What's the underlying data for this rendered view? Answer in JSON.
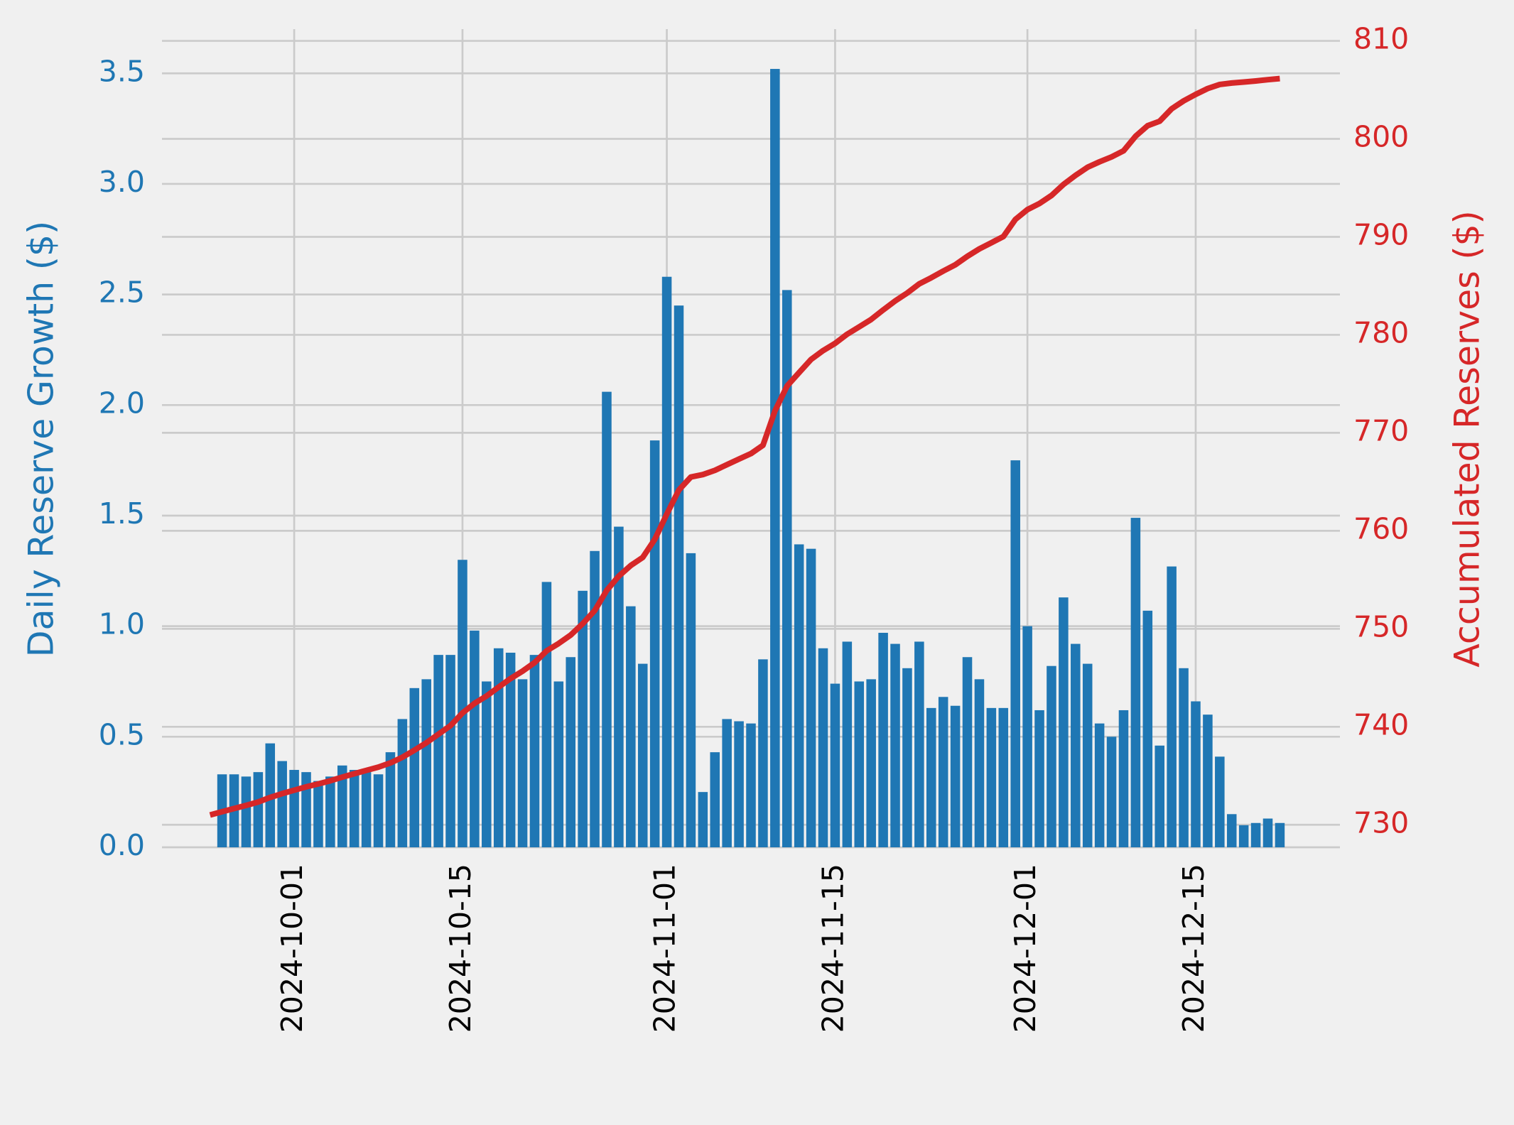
{
  "chart_data": {
    "type": "bar",
    "ylabel": "Daily Reserve Growth ($)",
    "y2label": "Accumulated Reserves ($)",
    "x": [
      "2024-09-24",
      "2024-09-25",
      "2024-09-26",
      "2024-09-27",
      "2024-09-28",
      "2024-09-29",
      "2024-09-30",
      "2024-10-01",
      "2024-10-02",
      "2024-10-03",
      "2024-10-04",
      "2024-10-05",
      "2024-10-06",
      "2024-10-07",
      "2024-10-08",
      "2024-10-09",
      "2024-10-10",
      "2024-10-11",
      "2024-10-12",
      "2024-10-13",
      "2024-10-14",
      "2024-10-15",
      "2024-10-16",
      "2024-10-17",
      "2024-10-18",
      "2024-10-19",
      "2024-10-20",
      "2024-10-21",
      "2024-10-22",
      "2024-10-23",
      "2024-10-24",
      "2024-10-25",
      "2024-10-26",
      "2024-10-27",
      "2024-10-28",
      "2024-10-29",
      "2024-10-30",
      "2024-10-31",
      "2024-11-01",
      "2024-11-02",
      "2024-11-03",
      "2024-11-04",
      "2024-11-05",
      "2024-11-06",
      "2024-11-07",
      "2024-11-08",
      "2024-11-09",
      "2024-11-10",
      "2024-11-11",
      "2024-11-12",
      "2024-11-13",
      "2024-11-14",
      "2024-11-15",
      "2024-11-16",
      "2024-11-17",
      "2024-11-18",
      "2024-11-19",
      "2024-11-20",
      "2024-11-21",
      "2024-11-22",
      "2024-11-23",
      "2024-11-24",
      "2024-11-25",
      "2024-11-26",
      "2024-11-27",
      "2024-11-28",
      "2024-11-29",
      "2024-11-30",
      "2024-12-01",
      "2024-12-02",
      "2024-12-03",
      "2024-12-04",
      "2024-12-05",
      "2024-12-06",
      "2024-12-07",
      "2024-12-08",
      "2024-12-09",
      "2024-12-10",
      "2024-12-11",
      "2024-12-12",
      "2024-12-13",
      "2024-12-14",
      "2024-12-15",
      "2024-12-16",
      "2024-12-17",
      "2024-12-18",
      "2024-12-19",
      "2024-12-20",
      "2024-12-21",
      "2024-12-22"
    ],
    "series": [
      {
        "type": "bar",
        "axis": "y",
        "color": "#1f77b4",
        "values": [
          null,
          0.33,
          0.33,
          0.32,
          0.34,
          0.47,
          0.39,
          0.35,
          0.34,
          0.3,
          0.32,
          0.37,
          0.35,
          0.34,
          0.33,
          0.43,
          0.58,
          0.72,
          0.76,
          0.87,
          0.87,
          1.3,
          0.98,
          0.75,
          0.9,
          0.88,
          0.76,
          0.87,
          1.2,
          0.75,
          0.86,
          1.16,
          1.34,
          2.06,
          1.45,
          1.09,
          0.83,
          1.84,
          2.58,
          2.45,
          1.33,
          0.25,
          0.43,
          0.58,
          0.57,
          0.56,
          0.85,
          3.52,
          2.52,
          1.37,
          1.35,
          0.9,
          0.74,
          0.93,
          0.75,
          0.76,
          0.97,
          0.92,
          0.81,
          0.93,
          0.63,
          0.68,
          0.64,
          0.86,
          0.76,
          0.63,
          0.63,
          1.75,
          1.0,
          0.62,
          0.82,
          1.13,
          0.92,
          0.83,
          0.56,
          0.5,
          0.62,
          1.49,
          1.07,
          0.46,
          1.27,
          0.81,
          0.66,
          0.6,
          0.41,
          0.15,
          0.1,
          0.11,
          0.13,
          0.11
        ]
      },
      {
        "type": "line",
        "axis": "y2",
        "color": "#d62728",
        "values": [
          731.0,
          731.33,
          731.66,
          731.98,
          732.32,
          732.79,
          733.18,
          733.53,
          733.87,
          734.17,
          734.49,
          734.86,
          735.21,
          735.55,
          735.88,
          736.31,
          736.89,
          737.61,
          738.37,
          739.24,
          740.11,
          741.41,
          742.39,
          743.14,
          744.04,
          744.92,
          745.68,
          746.55,
          747.75,
          748.5,
          749.36,
          750.52,
          751.86,
          753.92,
          755.37,
          756.46,
          757.29,
          759.13,
          761.71,
          764.16,
          765.49,
          765.74,
          766.17,
          766.75,
          767.32,
          767.88,
          768.73,
          772.25,
          774.77,
          776.14,
          777.49,
          778.39,
          779.13,
          780.06,
          780.81,
          781.57,
          782.54,
          783.46,
          784.27,
          785.2,
          785.83,
          786.51,
          787.15,
          788.01,
          788.77,
          789.4,
          790.03,
          791.78,
          792.78,
          793.4,
          794.22,
          795.35,
          796.27,
          797.1,
          797.66,
          798.16,
          798.78,
          800.27,
          801.34,
          801.8,
          803.07,
          803.88,
          804.54,
          805.14,
          805.55,
          805.7,
          805.8,
          805.91,
          806.04,
          806.15
        ]
      }
    ],
    "xlim": [
      "2024-09-20",
      "2024-12-27"
    ],
    "xticks": [
      "2024-10-01",
      "2024-10-15",
      "2024-11-01",
      "2024-11-15",
      "2024-12-01",
      "2024-12-15"
    ],
    "ylim": [
      0,
      3.7
    ],
    "yticks": [
      {
        "value": 0,
        "label": "0.0"
      },
      0.5,
      {
        "value": 1,
        "label": "1.0"
      },
      1.5,
      {
        "value": 2,
        "label": "2.0"
      },
      2.5,
      {
        "value": 3,
        "label": "3.0"
      },
      3.5
    ],
    "y2lim": [
      727.7,
      811.2
    ],
    "y2ticks": [
      730,
      740,
      750,
      760,
      770,
      780,
      790,
      800,
      810
    ],
    "grid": true,
    "ycolor": "#1f77b4",
    "y2color": "#d62728"
  }
}
